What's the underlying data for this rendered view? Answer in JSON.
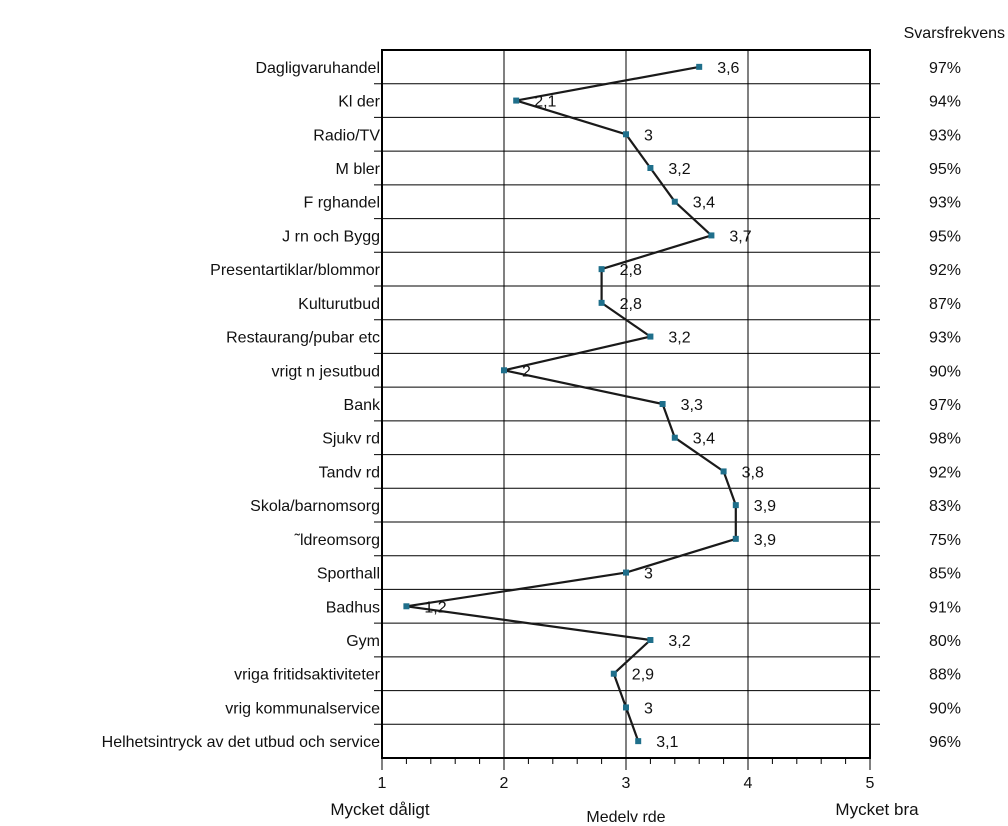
{
  "chart_data": {
    "type": "line",
    "orientation": "horizontal",
    "categories": [
      "Dagligvaruhandel",
      "Kl der",
      "Radio/TV",
      "M bler",
      "F rghandel",
      "J rn och Bygg",
      "Presentartiklar/blommor",
      "Kulturutbud",
      "Restaurang/pubar etc",
      "vrigt n jesutbud",
      "Bank",
      "Sjukv rd",
      "Tandv rd",
      "Skola/barnomsorg",
      "˜ldreomsorg",
      "Sporthall",
      "Badhus",
      "Gym",
      "vriga fritidsaktiviteter",
      "vrig kommunalservice",
      "Helhetsintryck av det utbud och service"
    ],
    "values": [
      3.6,
      2.1,
      3,
      3.2,
      3.4,
      3.7,
      2.8,
      2.8,
      3.2,
      2,
      3.3,
      3.4,
      3.8,
      3.9,
      3.9,
      3,
      1.2,
      3.2,
      2.9,
      3,
      3.1
    ],
    "value_labels": [
      "3,6",
      "2,1",
      "3",
      "3,2",
      "3,4",
      "3,7",
      "2,8",
      "2,8",
      "3,2",
      "2",
      "3,3",
      "3,4",
      "3,8",
      "3,9",
      "3,9",
      "3",
      "1,2",
      "3,2",
      "2,9",
      "3",
      "3,1"
    ],
    "response_rates": [
      "97%",
      "94%",
      "93%",
      "95%",
      "93%",
      "95%",
      "92%",
      "87%",
      "93%",
      "90%",
      "97%",
      "98%",
      "92%",
      "83%",
      "75%",
      "85%",
      "91%",
      "80%",
      "88%",
      "90%",
      "96%"
    ],
    "response_header": "Svarsfrekvens",
    "xlim": [
      1,
      5
    ],
    "xticks": [
      1,
      2,
      3,
      4,
      5
    ],
    "xtick_labels": [
      "1",
      "2",
      "3",
      "4",
      "5"
    ],
    "xlabel": "Medelv rde",
    "x_low_label": "Mycket dåligt",
    "x_high_label": "Mycket bra",
    "grid": true,
    "colors": {
      "line": "#1a1a1a",
      "marker": "#1f6f8b",
      "grid": "#000000"
    }
  }
}
